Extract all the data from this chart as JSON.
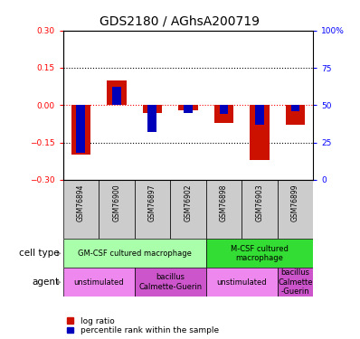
{
  "title": "GDS2180 / AGhsA200719",
  "samples": [
    "GSM76894",
    "GSM76900",
    "GSM76897",
    "GSM76902",
    "GSM76898",
    "GSM76903",
    "GSM76899"
  ],
  "log_ratio": [
    -0.2,
    0.1,
    -0.03,
    -0.02,
    -0.07,
    -0.22,
    -0.08
  ],
  "percentile_rank": [
    18,
    62,
    32,
    45,
    44,
    37,
    46
  ],
  "ylim_left": [
    -0.3,
    0.3
  ],
  "ylim_right": [
    0,
    100
  ],
  "yticks_left": [
    -0.3,
    -0.15,
    0,
    0.15,
    0.3
  ],
  "yticks_right": [
    0,
    25,
    50,
    75,
    100
  ],
  "hlines": [
    0.15,
    -0.15
  ],
  "cell_type_groups": [
    {
      "label": "GM-CSF cultured macrophage",
      "start": 0,
      "end": 4,
      "color": "#aaffaa"
    },
    {
      "label": "M-CSF cultured\nmacrophage",
      "start": 4,
      "end": 7,
      "color": "#33dd33"
    }
  ],
  "agent_groups": [
    {
      "label": "unstimulated",
      "start": 0,
      "end": 2,
      "color": "#ee88ee"
    },
    {
      "label": "bacillus\nCalmette-Guerin",
      "start": 2,
      "end": 4,
      "color": "#cc55cc"
    },
    {
      "label": "unstimulated",
      "start": 4,
      "end": 6,
      "color": "#ee88ee"
    },
    {
      "label": "bacillus\nCalmette\n-Guerin",
      "start": 6,
      "end": 7,
      "color": "#cc55cc"
    }
  ],
  "bar_color_red": "#cc1100",
  "bar_color_blue": "#0000bb",
  "title_fontsize": 10,
  "tick_fontsize": 6.5,
  "sample_fontsize": 5.5,
  "group_fontsize": 6.0,
  "legend_fontsize": 6.5,
  "label_fontsize": 7.5
}
